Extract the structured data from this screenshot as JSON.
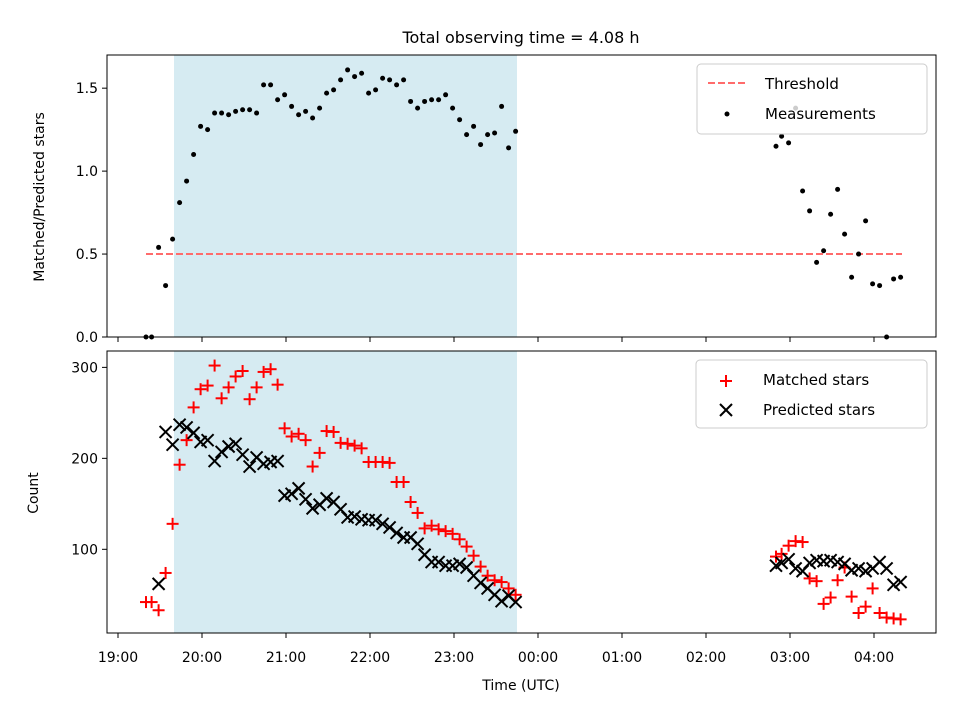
{
  "chart_data": [
    {
      "type": "scatter",
      "title": "Total observing time = 4.08 h",
      "ylabel": "Matched/Predicted stars",
      "xlabel": "",
      "ylim": [
        0,
        1.7
      ],
      "yticks": [
        0.0,
        0.5,
        1.0,
        1.5
      ],
      "ytick_labels": [
        "0.0",
        "0.5",
        "1.0",
        "1.5"
      ],
      "shaded_interval": {
        "start": "19:40",
        "end": "23:45",
        "color": "#add8e6"
      },
      "legend": {
        "position": "upper right",
        "entries": [
          "Threshold",
          "Measurements"
        ]
      },
      "threshold": {
        "name": "Threshold",
        "value": 0.5,
        "x_start": "19:20",
        "x_end": "04:20",
        "color": "#ff6b6b",
        "style": "dashed"
      },
      "series": [
        {
          "name": "Measurements",
          "color": "#000000",
          "x": [
            "19:20",
            "19:24",
            "19:29",
            "19:34",
            "19:39",
            "19:44",
            "19:49",
            "19:54",
            "19:59",
            "20:04",
            "20:09",
            "20:14",
            "20:19",
            "20:24",
            "20:29",
            "20:34",
            "20:39",
            "20:44",
            "20:49",
            "20:54",
            "20:59",
            "21:04",
            "21:09",
            "21:14",
            "21:19",
            "21:24",
            "21:29",
            "21:34",
            "21:39",
            "21:44",
            "21:49",
            "21:54",
            "21:59",
            "22:04",
            "22:09",
            "22:14",
            "22:19",
            "22:24",
            "22:29",
            "22:34",
            "22:39",
            "22:44",
            "22:49",
            "22:54",
            "22:59",
            "23:04",
            "23:09",
            "23:14",
            "23:19",
            "23:24",
            "23:29",
            "23:34",
            "23:39",
            "23:44",
            "02:50",
            "02:54",
            "02:59",
            "03:04",
            "03:09",
            "03:14",
            "03:19",
            "03:24",
            "03:29",
            "03:34",
            "03:39",
            "03:44",
            "03:49",
            "03:54",
            "03:59",
            "04:04",
            "04:09",
            "04:14",
            "04:19"
          ],
          "y": [
            0.0,
            0.0,
            0.54,
            0.31,
            0.59,
            0.81,
            0.94,
            1.1,
            1.27,
            1.25,
            1.35,
            1.35,
            1.34,
            1.36,
            1.37,
            1.37,
            1.35,
            1.52,
            1.52,
            1.43,
            1.46,
            1.39,
            1.34,
            1.36,
            1.32,
            1.38,
            1.47,
            1.49,
            1.55,
            1.61,
            1.57,
            1.59,
            1.47,
            1.49,
            1.56,
            1.55,
            1.52,
            1.55,
            1.42,
            1.38,
            1.42,
            1.43,
            1.43,
            1.46,
            1.38,
            1.31,
            1.22,
            1.27,
            1.16,
            1.22,
            1.23,
            1.39,
            1.14,
            1.24,
            1.15,
            1.21,
            1.17,
            1.38,
            0.88,
            0.76,
            0.45,
            0.52,
            0.74,
            0.89,
            0.62,
            0.36,
            0.5,
            0.7,
            0.32,
            0.31,
            0.0,
            0.35,
            0.36
          ]
        }
      ]
    },
    {
      "type": "scatter",
      "xlabel": "Time (UTC)",
      "ylabel": "Count",
      "ylim": [
        8,
        318
      ],
      "yticks": [
        100,
        200,
        300
      ],
      "ytick_labels": [
        "100",
        "200",
        "300"
      ],
      "xticks": [
        "19:00",
        "20:00",
        "21:00",
        "22:00",
        "23:00",
        "00:00",
        "01:00",
        "02:00",
        "03:00",
        "04:00"
      ],
      "shaded_interval": {
        "start": "19:40",
        "end": "23:45",
        "color": "#add8e6"
      },
      "legend": {
        "position": "upper right",
        "entries": [
          "Matched stars",
          "Predicted stars"
        ]
      },
      "series": [
        {
          "name": "Matched stars",
          "marker": "+",
          "color": "#ff0000",
          "x": [
            "19:20",
            "19:24",
            "19:29",
            "19:34",
            "19:39",
            "19:44",
            "19:49",
            "19:54",
            "19:59",
            "20:04",
            "20:09",
            "20:14",
            "20:19",
            "20:24",
            "20:29",
            "20:34",
            "20:39",
            "20:44",
            "20:49",
            "20:54",
            "20:59",
            "21:04",
            "21:09",
            "21:14",
            "21:19",
            "21:24",
            "21:29",
            "21:34",
            "21:39",
            "21:44",
            "21:49",
            "21:54",
            "21:59",
            "22:04",
            "22:09",
            "22:14",
            "22:19",
            "22:24",
            "22:29",
            "22:34",
            "22:39",
            "22:44",
            "22:49",
            "22:54",
            "22:59",
            "23:04",
            "23:09",
            "23:14",
            "23:19",
            "23:24",
            "23:29",
            "23:34",
            "23:39",
            "23:44",
            "02:50",
            "02:54",
            "02:59",
            "03:04",
            "03:09",
            "03:14",
            "03:19",
            "03:24",
            "03:29",
            "03:34",
            "03:39",
            "03:44",
            "03:49",
            "03:54",
            "03:59",
            "04:04",
            "04:09",
            "04:14",
            "04:19"
          ],
          "values": [
            42,
            42,
            33,
            74,
            128,
            193,
            220,
            256,
            276,
            280,
            302,
            266,
            278,
            290,
            296,
            265,
            278,
            295,
            298,
            281,
            233,
            224,
            227,
            220,
            191,
            206,
            230,
            229,
            217,
            216,
            214,
            211,
            196,
            196,
            196,
            195,
            174,
            174,
            152,
            140,
            123,
            126,
            122,
            120,
            117,
            111,
            103,
            93,
            81,
            71,
            66,
            64,
            57,
            50,
            92,
            95,
            104,
            109,
            108,
            68,
            65,
            40,
            47,
            66,
            80,
            48,
            30,
            37,
            57,
            30,
            25,
            24,
            23
          ]
        },
        {
          "name": "Predicted stars",
          "marker": "x",
          "color": "#000000",
          "x": [
            "19:34",
            "19:39",
            "19:44",
            "19:49",
            "19:54",
            "19:59",
            "20:04",
            "20:09",
            "20:14",
            "20:19",
            "20:24",
            "20:29",
            "20:34",
            "20:39",
            "20:44",
            "20:49",
            "20:54",
            "20:59",
            "21:04",
            "21:09",
            "21:14",
            "21:19",
            "21:24",
            "21:29",
            "21:34",
            "21:39",
            "21:44",
            "21:49",
            "21:54",
            "21:59",
            "22:04",
            "22:09",
            "22:14",
            "22:19",
            "22:24",
            "22:29",
            "22:34",
            "22:39",
            "22:44",
            "22:49",
            "22:54",
            "22:59",
            "23:04",
            "23:09",
            "23:14",
            "23:19",
            "23:24",
            "23:29",
            "23:34",
            "23:39",
            "23:44",
            "19:29",
            "02:50",
            "02:54",
            "02:59",
            "03:04",
            "03:09",
            "03:14",
            "03:19",
            "03:24",
            "03:29",
            "03:34",
            "03:39",
            "03:44",
            "03:49",
            "03:54",
            "03:59",
            "04:04",
            "04:09",
            "04:14",
            "04:19"
          ],
          "values": [
            229,
            215,
            237,
            234,
            228,
            218,
            220,
            197,
            207,
            213,
            216,
            204,
            191,
            201,
            194,
            196,
            197,
            159,
            161,
            167,
            155,
            145,
            149,
            156,
            152,
            144,
            135,
            136,
            133,
            132,
            132,
            128,
            124,
            118,
            113,
            113,
            106,
            94,
            86,
            86,
            82,
            82,
            84,
            80,
            71,
            63,
            57,
            50,
            43,
            49,
            42,
            62,
            82,
            85,
            89,
            79,
            76,
            85,
            88,
            87,
            88,
            86,
            84,
            77,
            79,
            76,
            79,
            86,
            79,
            61,
            64
          ]
        }
      ]
    }
  ]
}
